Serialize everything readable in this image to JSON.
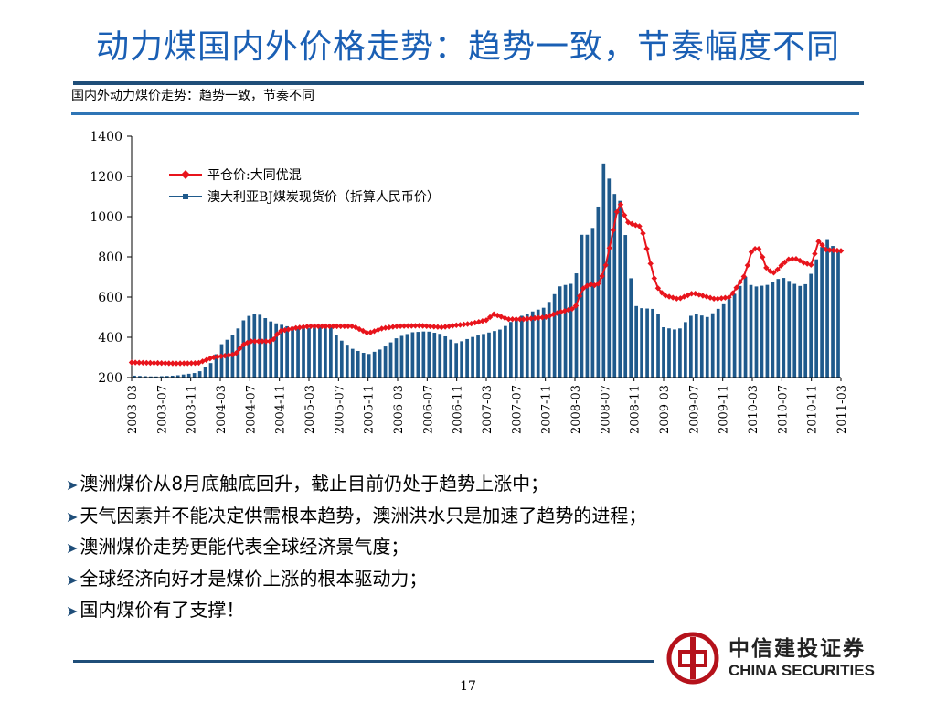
{
  "slide": {
    "title": "动力煤国内外价格走势：趋势一致，节奏幅度不同",
    "chart_title": "国内外动力煤价走势：趋势一致，节奏不同",
    "page_number": "17"
  },
  "bullets": [
    "澳洲煤价从8月底触底回升，截止目前仍处于趋势上涨中；",
    "天气因素并不能决定供需根本趋势，澳洲洪水只是加速了趋势的进程；",
    "澳洲煤价走势更能代表全球经济景气度；",
    "全球经济向好才是煤价上涨的根本驱动力；",
    "国内煤价有了支撑！"
  ],
  "brand": {
    "name_cn": "中信建投证券",
    "name_en": "CHINA SECURITIES",
    "color": "#b5121b"
  },
  "colors": {
    "title": "#1a5fb4",
    "rule": "#1f4e79",
    "series_domestic": "#e8141c",
    "series_australia": "#1f5a8c"
  },
  "chart_data": {
    "type": "bar+line",
    "title": "国内外动力煤价走势：趋势一致，节奏不同",
    "ylim": [
      200,
      1400
    ],
    "yticks": [
      200,
      400,
      600,
      800,
      1000,
      1200,
      1400
    ],
    "x_start": "2003-03",
    "x_end": "2011-03",
    "xtick_labels": [
      "2003-03",
      "2003-07",
      "2003-11",
      "2004-03",
      "2004-07",
      "2004-11",
      "2005-03",
      "2005-07",
      "2005-11",
      "2006-03",
      "2006-07",
      "2006-11",
      "2007-03",
      "2007-07",
      "2007-11",
      "2008-03",
      "2008-07",
      "2008-11",
      "2009-03",
      "2009-07",
      "2009-11",
      "2010-03",
      "2010-07",
      "2010-11",
      "2011-03"
    ],
    "legend_position": "top-left",
    "grid": false,
    "series": [
      {
        "name": "平仓价:大同优混",
        "type": "line",
        "marker": "diamond",
        "color": "#e8141c",
        "points": [
          [
            "2003-03",
            275
          ],
          [
            "2003-09",
            270
          ],
          [
            "2003-12",
            272
          ],
          [
            "2004-02",
            300
          ],
          [
            "2004-05",
            315
          ],
          [
            "2004-06",
            360
          ],
          [
            "2004-07",
            380
          ],
          [
            "2004-10",
            380
          ],
          [
            "2004-11",
            430
          ],
          [
            "2005-01",
            445
          ],
          [
            "2005-03",
            455
          ],
          [
            "2005-06",
            455
          ],
          [
            "2005-09",
            455
          ],
          [
            "2005-11",
            420
          ],
          [
            "2006-01",
            445
          ],
          [
            "2006-03",
            455
          ],
          [
            "2006-06",
            458
          ],
          [
            "2006-09",
            450
          ],
          [
            "2006-11",
            460
          ],
          [
            "2007-01",
            468
          ],
          [
            "2007-03",
            485
          ],
          [
            "2007-04",
            515
          ],
          [
            "2007-06",
            490
          ],
          [
            "2007-08",
            490
          ],
          [
            "2007-11",
            500
          ],
          [
            "2008-01",
            525
          ],
          [
            "2008-03",
            545
          ],
          [
            "2008-04",
            640
          ],
          [
            "2008-05",
            665
          ],
          [
            "2008-06",
            655
          ],
          [
            "2008-07",
            730
          ],
          [
            "2008-08",
            900
          ],
          [
            "2008-09",
            1080
          ],
          [
            "2008-10",
            975
          ],
          [
            "2008-11",
            960
          ],
          [
            "2008-12",
            950
          ],
          [
            "2009-01",
            800
          ],
          [
            "2009-02",
            655
          ],
          [
            "2009-03",
            610
          ],
          [
            "2009-05",
            590
          ],
          [
            "2009-07",
            620
          ],
          [
            "2009-10",
            590
          ],
          [
            "2009-12",
            600
          ],
          [
            "2010-02",
            710
          ],
          [
            "2010-03",
            840
          ],
          [
            "2010-04",
            840
          ],
          [
            "2010-05",
            735
          ],
          [
            "2010-06",
            720
          ],
          [
            "2010-07",
            760
          ],
          [
            "2010-08",
            790
          ],
          [
            "2010-09",
            790
          ],
          [
            "2010-10",
            770
          ],
          [
            "2010-11",
            760
          ],
          [
            "2010-12",
            880
          ],
          [
            "2011-01",
            835
          ],
          [
            "2011-03",
            830
          ]
        ]
      },
      {
        "name": "澳大利亚BJ煤炭现货价（折算人民币价）",
        "type": "bar",
        "color": "#1f5a8c",
        "points": [
          [
            "2003-03",
            210
          ],
          [
            "2003-06",
            205
          ],
          [
            "2003-09",
            210
          ],
          [
            "2003-12",
            225
          ],
          [
            "2004-02",
            280
          ],
          [
            "2004-03",
            360
          ],
          [
            "2004-05",
            420
          ],
          [
            "2004-06",
            480
          ],
          [
            "2004-07",
            510
          ],
          [
            "2004-08",
            520
          ],
          [
            "2004-10",
            475
          ],
          [
            "2004-12",
            455
          ],
          [
            "2005-03",
            445
          ],
          [
            "2005-06",
            455
          ],
          [
            "2005-07",
            395
          ],
          [
            "2005-09",
            340
          ],
          [
            "2005-11",
            315
          ],
          [
            "2006-01",
            345
          ],
          [
            "2006-03",
            400
          ],
          [
            "2006-05",
            425
          ],
          [
            "2006-07",
            430
          ],
          [
            "2006-09",
            415
          ],
          [
            "2006-11",
            370
          ],
          [
            "2007-01",
            400
          ],
          [
            "2007-03",
            420
          ],
          [
            "2007-05",
            440
          ],
          [
            "2007-07",
            495
          ],
          [
            "2007-09",
            525
          ],
          [
            "2007-11",
            550
          ],
          [
            "2008-01",
            655
          ],
          [
            "2008-03",
            670
          ],
          [
            "2008-04",
            930
          ],
          [
            "2008-05",
            900
          ],
          [
            "2008-06",
            1010
          ],
          [
            "2008-07",
            1300
          ],
          [
            "2008-08",
            1120
          ],
          [
            "2008-09",
            1100
          ],
          [
            "2008-10",
            870
          ],
          [
            "2008-11",
            560
          ],
          [
            "2008-12",
            545
          ],
          [
            "2009-02",
            540
          ],
          [
            "2009-03",
            450
          ],
          [
            "2009-05",
            435
          ],
          [
            "2009-07",
            520
          ],
          [
            "2009-09",
            500
          ],
          [
            "2009-11",
            560
          ],
          [
            "2010-01",
            630
          ],
          [
            "2010-02",
            705
          ],
          [
            "2010-03",
            650
          ],
          [
            "2010-05",
            660
          ],
          [
            "2010-07",
            700
          ],
          [
            "2010-09",
            660
          ],
          [
            "2010-10",
            650
          ],
          [
            "2010-11",
            720
          ],
          [
            "2010-12",
            820
          ],
          [
            "2011-01",
            890
          ],
          [
            "2011-02",
            850
          ],
          [
            "2011-03",
            820
          ]
        ]
      }
    ]
  }
}
